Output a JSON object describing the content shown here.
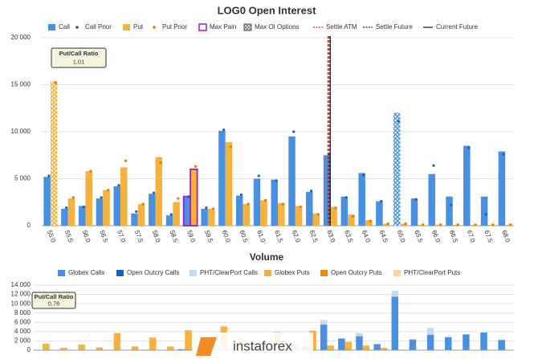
{
  "chart_data": [
    {
      "type": "bar",
      "title": "LOG0 Open Interest",
      "categories": [
        "55.0",
        "55.5",
        "56.0",
        "56.5",
        "57.0",
        "57.5",
        "58.0",
        "58.5",
        "59.0",
        "59.5",
        "60.0",
        "60.5",
        "61.0",
        "61.5",
        "62.0",
        "62.5",
        "63.0",
        "63.5",
        "64.0",
        "64.5",
        "65.0",
        "65.5",
        "66.0",
        "66.5",
        "67.0",
        "67.5",
        "68.0"
      ],
      "series": [
        {
          "name": "Call",
          "color": "#4a90e2",
          "values": [
            5200,
            1800,
            2100,
            2900,
            4200,
            1300,
            3400,
            1100,
            3100,
            1800,
            10100,
            3200,
            5000,
            4900,
            9500,
            3600,
            7500,
            3100,
            5600,
            2600,
            12000,
            2900,
            5500,
            3100,
            8500,
            3100,
            7900
          ]
        },
        {
          "name": "Put",
          "color": "#f7b13f",
          "values": [
            15400,
            2900,
            5800,
            3800,
            6200,
            2300,
            7300,
            2500,
            6000,
            1800,
            8900,
            2300,
            2700,
            2400,
            2100,
            1300,
            2000,
            1200,
            600,
            200,
            200,
            100,
            100,
            100,
            100,
            100,
            100
          ]
        }
      ],
      "prior_series": [
        {
          "name": "Call Prior",
          "color": "#1f5fb0",
          "values": [
            5300,
            1900,
            2000,
            3000,
            4300,
            1500,
            3500,
            1200,
            3100,
            1900,
            10200,
            3300,
            5300,
            4800,
            10000,
            3700,
            7600,
            3000,
            5400,
            2600,
            11100,
            2800,
            6400,
            2200,
            8300,
            1200,
            7600
          ]
        },
        {
          "name": "Put Prior",
          "color": "#e07b00",
          "values": [
            15200,
            3000,
            5800,
            3800,
            6900,
            2300,
            6700,
            2900,
            6300,
            1800,
            8400,
            2300,
            2700,
            2300,
            2000,
            1200,
            1900,
            1000,
            500,
            200,
            200,
            100,
            100,
            100,
            100,
            100,
            100
          ]
        }
      ],
      "max_pain": {
        "name": "Max Pain",
        "color": "#9b1fc9",
        "strike": "59.0"
      },
      "max_oi": {
        "name": "Max OI Options",
        "call": "65.0",
        "put": "55.0"
      },
      "vertical_lines": [
        {
          "name": "Settle ATM",
          "color": "#e02020",
          "dash": true,
          "x": 62.93
        },
        {
          "name": "Settle Future",
          "color": "#222222",
          "dash": true,
          "x": 62.97
        },
        {
          "name": "Current Future",
          "color": "#222222",
          "dash": false,
          "x": 63.0
        }
      ],
      "ylim": [
        0,
        20000
      ],
      "yticks": [
        {
          "value": 0,
          "label": "0"
        },
        {
          "value": 5000,
          "label": "5 000"
        },
        {
          "value": 10000,
          "label": "10 000"
        },
        {
          "value": 15000,
          "label": "15 000"
        },
        {
          "value": 20000,
          "label": "20 000"
        }
      ],
      "grid": true,
      "annotation": {
        "title": "Put/Call Ratio",
        "value": "1,01"
      }
    },
    {
      "type": "stacked_bar",
      "title": "Volume",
      "series": [
        {
          "name": "Globex Calls",
          "stack": "calls",
          "color": "#4a90e2",
          "values": [
            0,
            0,
            0,
            0,
            100,
            0,
            100,
            0,
            200,
            0,
            300,
            200,
            400,
            300,
            600,
            800,
            5500,
            2500,
            3000,
            1300,
            11500,
            2300,
            3300,
            2800,
            3400,
            3800,
            2200
          ]
        },
        {
          "name": "Open Outcry Calls",
          "stack": "calls",
          "color": "#1565c0",
          "values": [
            0,
            0,
            0,
            0,
            0,
            0,
            0,
            0,
            0,
            0,
            0,
            0,
            0,
            0,
            0,
            0,
            0,
            0,
            0,
            0,
            0,
            0,
            0,
            0,
            0,
            0,
            0
          ]
        },
        {
          "name": "PHT/ClearPort Calls",
          "stack": "calls",
          "color": "#c5d9f1",
          "values": [
            0,
            0,
            0,
            0,
            0,
            0,
            0,
            0,
            0,
            0,
            0,
            0,
            0,
            0,
            0,
            0,
            1000,
            0,
            700,
            0,
            1300,
            0,
            1500,
            0,
            0,
            0,
            0
          ]
        },
        {
          "name": "Globex Puts",
          "stack": "puts",
          "color": "#f7b13f",
          "values": [
            1400,
            500,
            1200,
            600,
            3700,
            800,
            2700,
            800,
            4300,
            300,
            5000,
            2800,
            1600,
            3900,
            1500,
            4200,
            1000,
            1800,
            1000,
            500,
            100,
            0,
            0,
            0,
            0,
            0,
            0
          ]
        },
        {
          "name": "Open Outcry Puts",
          "stack": "puts",
          "color": "#f08c00",
          "values": [
            0,
            0,
            0,
            0,
            0,
            0,
            0,
            0,
            0,
            0,
            0,
            0,
            0,
            0,
            0,
            0,
            0,
            0,
            0,
            0,
            0,
            0,
            0,
            0,
            0,
            0,
            0
          ]
        },
        {
          "name": "PHT/ClearPort Puts",
          "stack": "puts",
          "color": "#fbd5a5",
          "values": [
            0,
            0,
            0,
            0,
            0,
            0,
            0,
            0,
            0,
            0,
            300,
            0,
            0,
            0,
            0,
            0,
            0,
            0,
            0,
            0,
            0,
            0,
            0,
            0,
            0,
            0,
            0
          ]
        }
      ],
      "ylim": [
        0,
        14000
      ],
      "yticks": [
        {
          "value": 0,
          "label": "0"
        },
        {
          "value": 2000,
          "label": "2 000"
        },
        {
          "value": 4000,
          "label": "4 000"
        },
        {
          "value": 6000,
          "label": "6 000"
        },
        {
          "value": 8000,
          "label": "8 000"
        },
        {
          "value": 10000,
          "label": "10 000"
        },
        {
          "value": 12000,
          "label": "12 000"
        },
        {
          "value": 14000,
          "label": "14 000"
        }
      ],
      "grid": true,
      "annotation": {
        "title": "Put/Call Ratio",
        "value": "0,76"
      }
    }
  ],
  "watermark": "instaforex"
}
